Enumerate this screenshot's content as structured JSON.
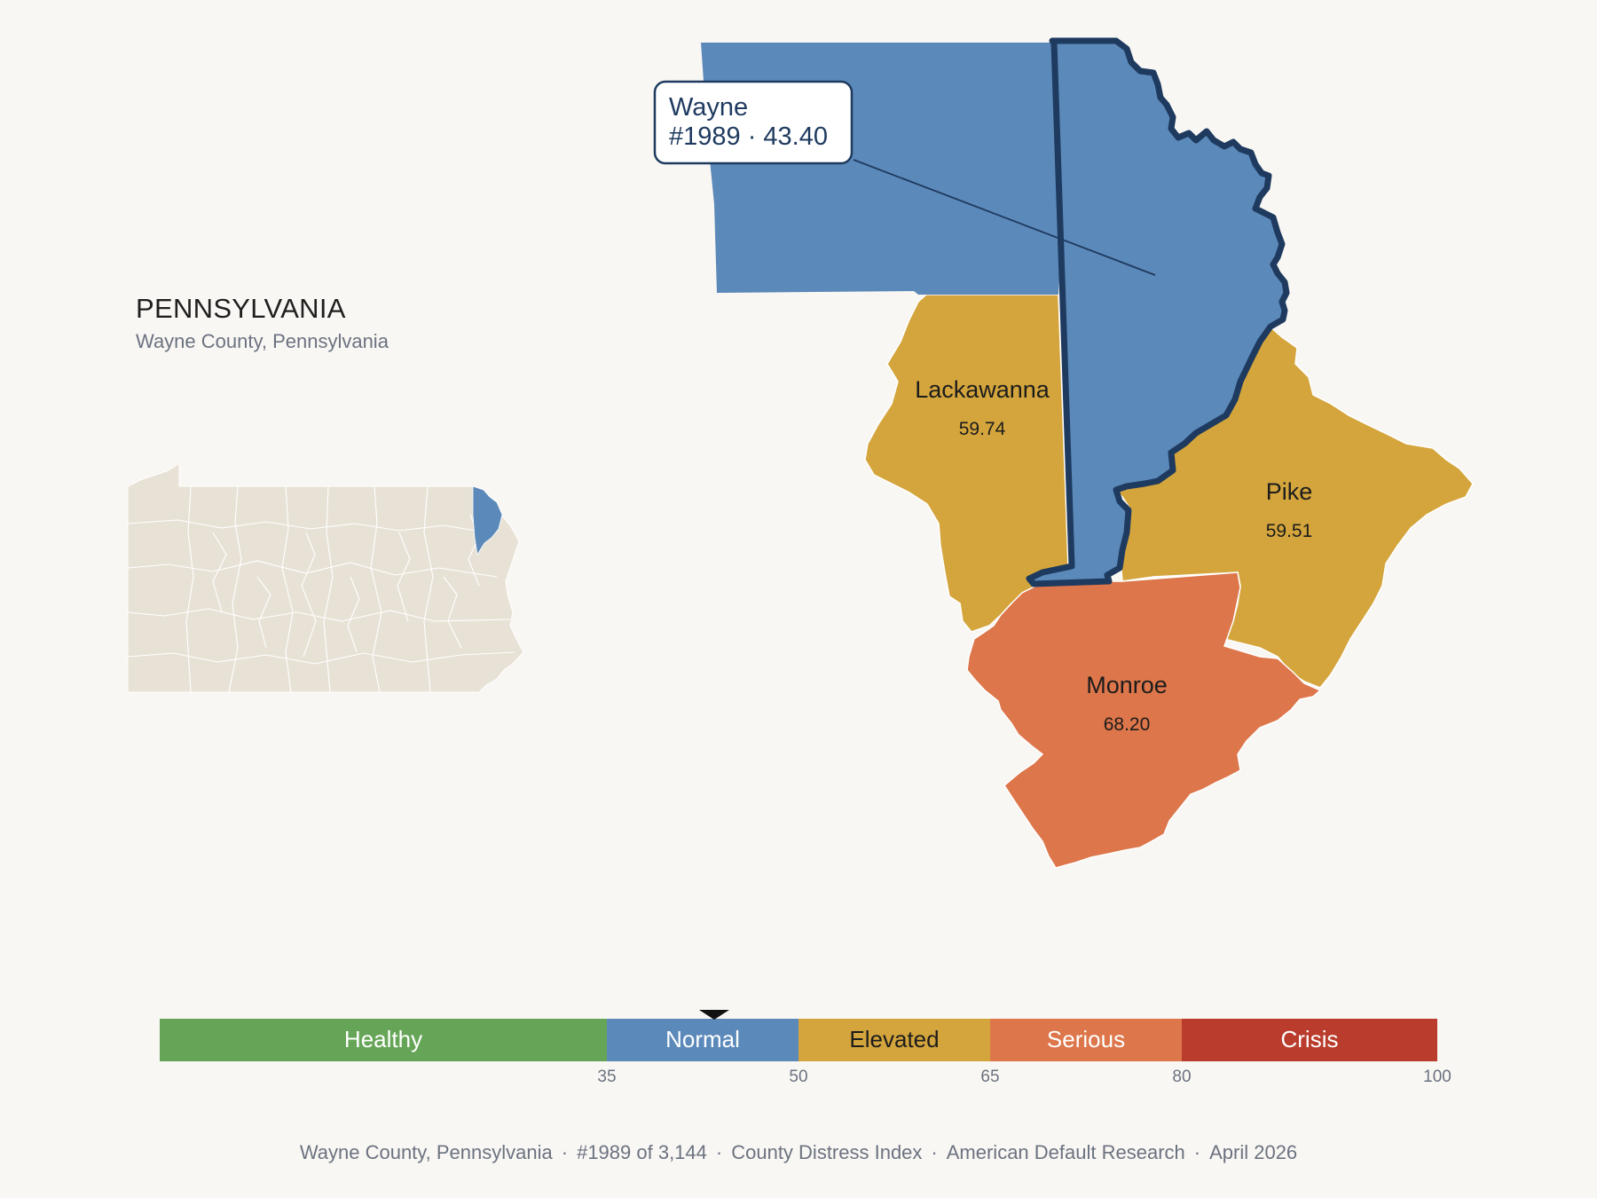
{
  "state": {
    "name": "PENNSYLVANIA",
    "subtitle": "Wayne County, Pennsylvania"
  },
  "callout": {
    "line1": "Wayne",
    "line2": "#1989 · 43.40"
  },
  "counties": [
    {
      "name": "Wayne",
      "value": null,
      "band": "Normal",
      "highlighted": true
    },
    {
      "name": "Lackawanna",
      "value": "59.74",
      "band": "Elevated"
    },
    {
      "name": "Pike",
      "value": "59.51",
      "band": "Elevated"
    },
    {
      "name": "Monroe",
      "value": "68.20",
      "band": "Serious"
    }
  ],
  "legend": {
    "bands": [
      {
        "label": "Healthy",
        "min": 0,
        "max": 35,
        "color": "#66a558",
        "text_color": "#ffffff"
      },
      {
        "label": "Normal",
        "min": 35,
        "max": 50,
        "color": "#5b89b9",
        "text_color": "#ffffff"
      },
      {
        "label": "Elevated",
        "min": 50,
        "max": 65,
        "color": "#d4a53c",
        "text_color": "#1c1c1c"
      },
      {
        "label": "Serious",
        "min": 65,
        "max": 80,
        "color": "#dd764a",
        "text_color": "#ffffff"
      },
      {
        "label": "Crisis",
        "min": 80,
        "max": 100,
        "color": "#b93c2d",
        "text_color": "#ffffff"
      }
    ],
    "ticks": [
      "35",
      "50",
      "65",
      "80",
      "100"
    ],
    "marker_value": 43.4
  },
  "colors": {
    "highlight_outline": "#1e3a5f",
    "state_fill": "#e8e2d6",
    "background": "#f9f7f3"
  },
  "footer": {
    "county": "Wayne County, Pennsylvania",
    "rank": "#1989 of 3,144",
    "index": "County Distress Index",
    "org": "American Default Research",
    "date": "April 2026"
  }
}
